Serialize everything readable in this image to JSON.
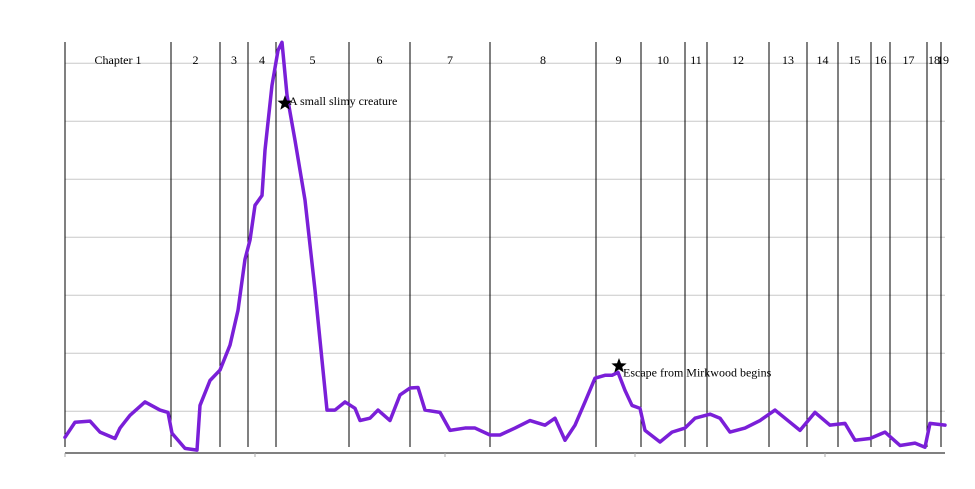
{
  "chart_data": {
    "type": "line",
    "chapters": [
      "Chapter 1",
      "2",
      "3",
      "4",
      "5",
      "6",
      "7",
      "8",
      "9",
      "10",
      "11",
      "12",
      "13",
      "14",
      "15",
      "16",
      "17",
      "18",
      "19"
    ],
    "chapter_starts": [
      0,
      106,
      155,
      183,
      211,
      284,
      345,
      425,
      531,
      576,
      620,
      642,
      704,
      742,
      773,
      806,
      825,
      862,
      876
    ],
    "x": [
      0,
      10,
      25,
      35,
      50,
      55,
      65,
      80,
      95,
      103,
      107,
      120,
      132,
      135,
      145,
      155,
      165,
      173,
      180,
      185,
      190,
      197,
      200,
      207,
      213,
      217,
      222,
      230,
      240,
      250,
      257,
      262,
      270,
      280,
      290,
      295,
      305,
      313,
      325,
      335,
      345,
      353,
      360,
      375,
      385,
      400,
      410,
      425,
      435,
      450,
      465,
      480,
      490,
      500,
      510,
      520,
      530,
      540,
      547,
      553,
      560,
      567,
      575,
      580,
      595,
      607,
      620,
      630,
      645,
      655,
      665,
      680,
      695,
      710,
      720,
      735,
      750,
      765,
      780,
      790,
      805,
      820,
      835,
      850,
      860,
      865,
      880
    ],
    "series": [
      {
        "color": "#7a1fd8",
        "values": [
          0.55,
          0.81,
          0.83,
          0.64,
          0.53,
          0.71,
          0.93,
          1.16,
          1.02,
          0.98,
          0.62,
          0.36,
          0.33,
          1.1,
          1.53,
          1.71,
          2.14,
          2.74,
          3.62,
          3.95,
          4.55,
          4.72,
          5.5,
          6.62,
          7.22,
          7.36,
          6.45,
          5.67,
          4.64,
          3.09,
          1.88,
          1.02,
          1.02,
          1.16,
          1.05,
          0.84,
          0.88,
          1.02,
          0.84,
          1.28,
          1.4,
          1.41,
          1.02,
          0.98,
          0.67,
          0.71,
          0.71,
          0.59,
          0.59,
          0.71,
          0.84,
          0.76,
          0.88,
          0.5,
          0.76,
          1.16,
          1.57,
          1.62,
          1.62,
          1.67,
          1.36,
          1.1,
          1.05,
          0.67,
          0.47,
          0.64,
          0.71,
          0.88,
          0.95,
          0.88,
          0.64,
          0.71,
          0.84,
          1.02,
          0.88,
          0.67,
          0.98,
          0.76,
          0.79,
          0.5,
          0.53,
          0.64,
          0.41,
          0.45,
          0.38,
          0.79,
          0.76
        ]
      }
    ],
    "annotations": [
      {
        "text": "A small slimy creature",
        "x": 220,
        "y": 6.31
      },
      {
        "text": "Escape from Mirkwood begins",
        "x": 554,
        "y": 1.78
      }
    ],
    "xlim": [
      0,
      880
    ],
    "xticks": [
      0,
      190,
      380,
      570,
      760
    ],
    "ylim": [
      0.28,
      7.4
    ],
    "yticks": [
      1,
      2,
      3,
      4,
      5,
      6,
      7
    ],
    "grid": true
  }
}
